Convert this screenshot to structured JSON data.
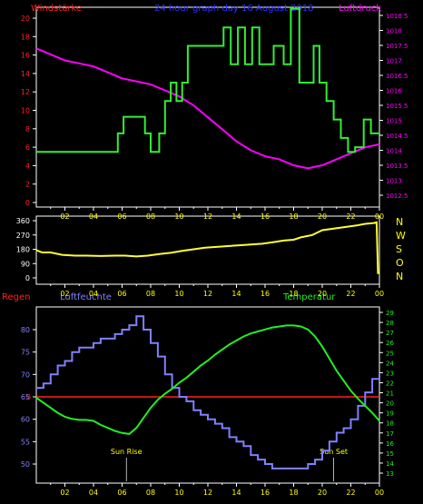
{
  "title": "24 hour graph day  16 August 2018",
  "colors": {
    "wind": "#ff2020",
    "title": "#3030ff",
    "pressure": "#ff00ff",
    "windline": "#33ee33",
    "winddir": "#ffff33",
    "humidity": "#8080ff",
    "temperature": "#22ee22",
    "rain": "#ff2020",
    "axis": "#ffffff",
    "hours": "#ffff00"
  },
  "chart_data": [
    {
      "type": "line",
      "name": "wind-pressure",
      "xlabel": "",
      "x_ticks": [
        "02",
        "04",
        "06",
        "08",
        "10",
        "12",
        "14",
        "16",
        "18",
        "20",
        "22",
        "00"
      ],
      "left_label": "Windstärke",
      "left_ticks": [
        "0",
        "2",
        "4",
        "6",
        "8",
        "10",
        "12",
        "14",
        "16",
        "18",
        "20"
      ],
      "left_ylim": [
        0,
        20
      ],
      "right_label": "Luftdruck",
      "right_ticks": [
        "1012.5",
        "1013",
        "1013.5",
        "1014",
        "1014.5",
        "1015",
        "1015.5",
        "1016",
        "1016.5",
        "1017",
        "1017.5",
        "1018",
        "1018.5"
      ],
      "right_ylim": [
        1012.5,
        1018.5
      ],
      "series": [
        {
          "name": "Windstärke",
          "axis": "left",
          "step": true,
          "x": [
            0,
            5.7,
            6.1,
            7.6,
            8.0,
            8.6,
            9.0,
            9.4,
            9.8,
            10.2,
            10.6,
            13.1,
            13.6,
            14.1,
            14.6,
            15.1,
            15.6,
            16.2,
            16.6,
            17.3,
            17.8,
            18.4,
            18.9,
            19.4,
            19.8,
            20.3,
            20.8,
            21.3,
            21.8,
            22.3,
            22.9,
            23.4,
            23.8,
            24
          ],
          "values": [
            5.5,
            7.5,
            9.3,
            7.5,
            5.5,
            7.5,
            11,
            13,
            11,
            13,
            17,
            19,
            15,
            19,
            15,
            19,
            15,
            15,
            17,
            15,
            21,
            13,
            13,
            17,
            13,
            11,
            9,
            7,
            5.5,
            6,
            9,
            7.5,
            7.5,
            7.5
          ]
        },
        {
          "name": "Luftdruck",
          "axis": "right",
          "x": [
            0,
            1,
            2,
            3,
            4,
            5,
            6,
            7,
            8,
            9,
            10,
            11,
            12,
            13,
            14,
            15,
            16,
            17,
            18,
            19,
            20,
            21,
            22,
            23,
            24
          ],
          "values": [
            1017.4,
            1017.2,
            1017.0,
            1016.9,
            1016.8,
            1016.6,
            1016.4,
            1016.3,
            1016.2,
            1016.0,
            1015.8,
            1015.5,
            1015.1,
            1014.7,
            1014.3,
            1014.0,
            1013.8,
            1013.7,
            1013.5,
            1013.4,
            1013.5,
            1013.7,
            1013.9,
            1014.1,
            1014.2
          ]
        }
      ]
    },
    {
      "type": "line",
      "name": "wind-direction",
      "x_ticks": [
        "02",
        "04",
        "06",
        "08",
        "10",
        "12",
        "14",
        "16",
        "18",
        "20",
        "22",
        "00"
      ],
      "left_ticks": [
        "0",
        "90",
        "180",
        "270",
        "360"
      ],
      "ylim": [
        0,
        360
      ],
      "right_ticks": [
        "N",
        "W",
        "S",
        "O",
        "N"
      ],
      "series": [
        {
          "name": "Windrichtung",
          "x": [
            0,
            0.4,
            1.0,
            1.8,
            2.7,
            3.5,
            4.5,
            5.5,
            6.2,
            7.0,
            7.8,
            8.6,
            9.4,
            10.2,
            11.0,
            11.8,
            12.6,
            13.4,
            14.2,
            15.0,
            15.8,
            16.6,
            17.3,
            18.0,
            18.5,
            19.3,
            20.0,
            20.8,
            21.6,
            22.4,
            23.0,
            23.6,
            23.8,
            23.9,
            24
          ],
          "values": [
            175,
            160,
            160,
            145,
            140,
            140,
            138,
            140,
            140,
            135,
            140,
            150,
            158,
            170,
            180,
            190,
            195,
            200,
            205,
            210,
            215,
            225,
            235,
            240,
            255,
            270,
            300,
            310,
            320,
            330,
            340,
            345,
            350,
            30,
            30
          ]
        }
      ]
    },
    {
      "type": "line",
      "name": "humidity-temperature",
      "x_ticks": [
        "02",
        "04",
        "06",
        "08",
        "10",
        "12",
        "14",
        "16",
        "18",
        "20",
        "22",
        "00"
      ],
      "left_label": "Regen",
      "mid_label": "Luftfeuchte",
      "right_label": "Temperatur",
      "left_ticks": [
        "50",
        "55",
        "60",
        "65",
        "70",
        "75",
        "80"
      ],
      "left_ylim": [
        46,
        84
      ],
      "rain_zero_label": "0",
      "right_ticks": [
        "13",
        "14",
        "15",
        "16",
        "17",
        "18",
        "19",
        "20",
        "21",
        "22",
        "23",
        "24",
        "25",
        "26",
        "27",
        "28",
        "29"
      ],
      "right_ylim": [
        12.5,
        29.2
      ],
      "annotations": [
        {
          "text": "Sun Rise",
          "x": 6.3
        },
        {
          "text": "Sun Set",
          "x": 20.8
        }
      ],
      "series": [
        {
          "name": "Luftfeuchte",
          "axis": "left",
          "step": true,
          "x": [
            0,
            0.5,
            1,
            1.5,
            2,
            2.5,
            3,
            3.5,
            4,
            4.5,
            5,
            5.5,
            6,
            6.5,
            7,
            7.5,
            8,
            8.5,
            9,
            9.5,
            10,
            10.5,
            11,
            11.5,
            12,
            12.5,
            13,
            13.5,
            14,
            14.5,
            15,
            15.5,
            16,
            16.5,
            17,
            17.5,
            18,
            18.5,
            19,
            19.5,
            20,
            20.5,
            21,
            21.5,
            22,
            22.5,
            23,
            23.5,
            24
          ],
          "values": [
            67,
            68,
            70,
            72,
            73,
            75,
            76,
            76,
            77,
            78,
            78,
            79,
            80,
            81,
            83,
            80,
            77,
            74,
            70,
            67,
            65,
            64,
            62,
            61,
            60,
            59,
            58,
            56,
            55,
            54,
            52,
            51,
            50,
            49,
            49,
            49,
            49,
            49,
            50,
            51,
            53,
            55,
            57,
            58,
            60,
            63,
            66,
            69,
            70
          ]
        },
        {
          "name": "Rain",
          "axis": "left",
          "x": [
            0,
            24
          ],
          "values": [
            0,
            0
          ]
        },
        {
          "name": "Temperatur",
          "axis": "right",
          "x": [
            0,
            0.5,
            1,
            1.5,
            2,
            2.5,
            3,
            3.5,
            4,
            4.5,
            5,
            5.5,
            6,
            6.5,
            7,
            7.5,
            8,
            8.5,
            9,
            9.5,
            10,
            10.5,
            11,
            11.5,
            12,
            12.5,
            13,
            13.5,
            14,
            14.5,
            15,
            15.5,
            16,
            16.5,
            17,
            17.5,
            18,
            18.5,
            19,
            19.5,
            20,
            20.5,
            21,
            21.5,
            22,
            22.5,
            23,
            23.5,
            24
          ],
          "values": [
            20.5,
            20,
            19.5,
            19,
            18.6,
            18.4,
            18.3,
            18.3,
            18.2,
            17.8,
            17.5,
            17.2,
            17,
            16.9,
            17.5,
            18.5,
            19.5,
            20.3,
            20.9,
            21.4,
            22.0,
            22.5,
            23.1,
            23.7,
            24.2,
            24.8,
            25.3,
            25.8,
            26.2,
            26.6,
            26.9,
            27.1,
            27.3,
            27.5,
            27.6,
            27.7,
            27.7,
            27.6,
            27.3,
            26.6,
            25.6,
            24.4,
            23.2,
            22.2,
            21.2,
            20.4,
            19.7,
            19.0,
            18.2
          ]
        }
      ]
    }
  ]
}
